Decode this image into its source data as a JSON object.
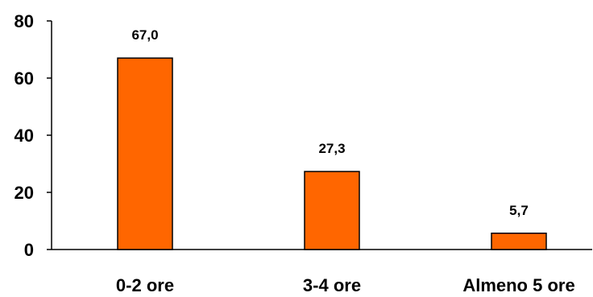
{
  "chart_data": {
    "type": "bar",
    "categories": [
      "0-2 ore",
      "3-4 ore",
      "Almeno 5 ore"
    ],
    "values": [
      67.0,
      27.3,
      5.7
    ],
    "value_labels": [
      "67,0",
      "27,3",
      "5,7"
    ],
    "yticks": [
      0,
      20,
      40,
      60,
      80
    ],
    "ylim": [
      0,
      80
    ],
    "bar_color": "#ff6600",
    "title": "",
    "xlabel": "",
    "ylabel": "",
    "grid": false,
    "legend": "none"
  }
}
